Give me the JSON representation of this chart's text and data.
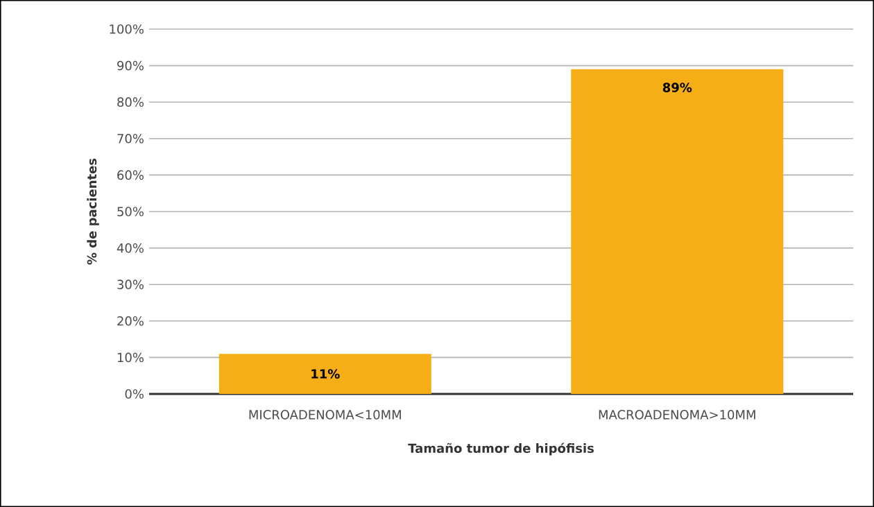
{
  "chart_data": {
    "type": "bar",
    "xlabel": "Tamaño tumor de hipófisis",
    "ylabel": "% de pacientes",
    "categories": [
      "MICROADENOMA<10MM",
      "MACROADENOMA>10MM"
    ],
    "values": [
      11,
      89
    ],
    "value_labels": [
      "11%",
      "89%"
    ],
    "color": "#f5ae16",
    "ylim": [
      0,
      100
    ],
    "yticks": [
      {
        "value": 0,
        "label": "0%"
      },
      {
        "value": 10,
        "label": "10%"
      },
      {
        "value": 20,
        "label": "20%"
      },
      {
        "value": 30,
        "label": "30%"
      },
      {
        "value": 40,
        "label": "40%"
      },
      {
        "value": 50,
        "label": "50%"
      },
      {
        "value": 60,
        "label": "60%"
      },
      {
        "value": 70,
        "label": "70%"
      },
      {
        "value": 80,
        "label": "80%"
      },
      {
        "value": 90,
        "label": "90%"
      },
      {
        "value": 100,
        "label": "100%"
      }
    ],
    "grid": "y"
  }
}
